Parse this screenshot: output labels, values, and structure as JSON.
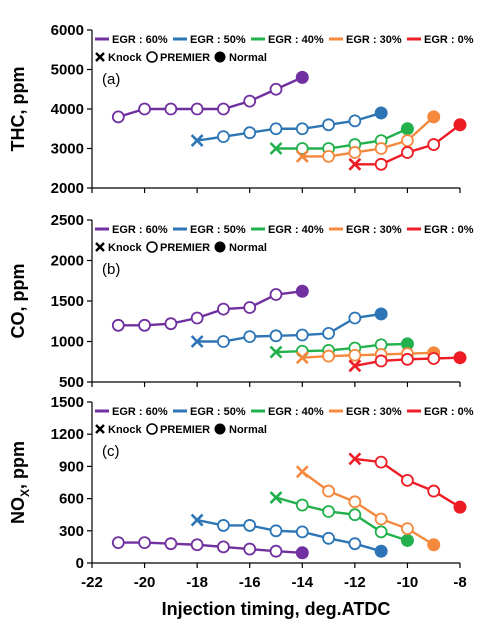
{
  "chart_data": {
    "type": "line",
    "xlabel": "Injection timing, deg.ATDC",
    "xlim": [
      -22,
      -8
    ],
    "xticks": [
      "-22",
      "-20",
      "-18",
      "-16",
      "-14",
      "-12",
      "-10",
      "-8"
    ],
    "series_names": [
      "EGR : 60%",
      "EGR : 50%",
      "EGR : 40%",
      "EGR : 30%",
      "EGR : 0%"
    ],
    "series_colors": [
      "#7030a0",
      "#2e75b6",
      "#22b14c",
      "#f4883c",
      "#ee1c25"
    ],
    "marker_legend": [
      "Knock",
      "PREMIER",
      "Normal"
    ],
    "panels": [
      {
        "tag": "(a)",
        "ylabel": "THC, ppm",
        "ylim": [
          2000,
          6000
        ],
        "yticks": [
          "2000",
          "3000",
          "4000",
          "5000",
          "6000"
        ],
        "series": [
          {
            "name": "EGR : 60%",
            "points": [
              [
                -21,
                3800,
                "premier"
              ],
              [
                -20,
                4000,
                "premier"
              ],
              [
                -19,
                4000,
                "premier"
              ],
              [
                -18,
                4000,
                "premier"
              ],
              [
                -17,
                4000,
                "premier"
              ],
              [
                -16,
                4200,
                "premier"
              ],
              [
                -15,
                4500,
                "premier"
              ],
              [
                -14,
                4800,
                "normal"
              ]
            ]
          },
          {
            "name": "EGR : 50%",
            "points": [
              [
                -18,
                3200,
                "knock"
              ],
              [
                -17,
                3300,
                "premier"
              ],
              [
                -16,
                3400,
                "premier"
              ],
              [
                -15,
                3500,
                "premier"
              ],
              [
                -14,
                3500,
                "premier"
              ],
              [
                -13,
                3600,
                "premier"
              ],
              [
                -12,
                3700,
                "premier"
              ],
              [
                -11,
                3900,
                "normal"
              ]
            ]
          },
          {
            "name": "EGR : 40%",
            "points": [
              [
                -15,
                3000,
                "knock"
              ],
              [
                -14,
                3000,
                "premier"
              ],
              [
                -13,
                3000,
                "premier"
              ],
              [
                -12,
                3100,
                "premier"
              ],
              [
                -11,
                3200,
                "premier"
              ],
              [
                -10,
                3500,
                "normal"
              ]
            ]
          },
          {
            "name": "EGR : 30%",
            "points": [
              [
                -14,
                2800,
                "knock"
              ],
              [
                -13,
                2800,
                "premier"
              ],
              [
                -12,
                2900,
                "premier"
              ],
              [
                -11,
                3000,
                "premier"
              ],
              [
                -10,
                3200,
                "premier"
              ],
              [
                -9,
                3800,
                "normal"
              ]
            ]
          },
          {
            "name": "EGR : 0%",
            "points": [
              [
                -12,
                2600,
                "knock"
              ],
              [
                -11,
                2600,
                "premier"
              ],
              [
                -10,
                2900,
                "premier"
              ],
              [
                -9,
                3100,
                "premier"
              ],
              [
                -8,
                3600,
                "normal"
              ]
            ]
          }
        ]
      },
      {
        "tag": "(b)",
        "ylabel": "CO, ppm",
        "ylim": [
          500,
          2500
        ],
        "yticks": [
          "500",
          "1000",
          "1500",
          "2000",
          "2500"
        ],
        "series": [
          {
            "name": "EGR : 60%",
            "points": [
              [
                -21,
                1200,
                "premier"
              ],
              [
                -20,
                1200,
                "premier"
              ],
              [
                -19,
                1220,
                "premier"
              ],
              [
                -18,
                1290,
                "premier"
              ],
              [
                -17,
                1400,
                "premier"
              ],
              [
                -16,
                1420,
                "premier"
              ],
              [
                -15,
                1580,
                "premier"
              ],
              [
                -14,
                1620,
                "normal"
              ]
            ]
          },
          {
            "name": "EGR : 50%",
            "points": [
              [
                -18,
                1000,
                "knock"
              ],
              [
                -17,
                1000,
                "premier"
              ],
              [
                -16,
                1060,
                "premier"
              ],
              [
                -15,
                1070,
                "premier"
              ],
              [
                -14,
                1080,
                "premier"
              ],
              [
                -13,
                1100,
                "premier"
              ],
              [
                -12,
                1290,
                "premier"
              ],
              [
                -11,
                1340,
                "normal"
              ]
            ]
          },
          {
            "name": "EGR : 40%",
            "points": [
              [
                -15,
                870,
                "knock"
              ],
              [
                -14,
                880,
                "premier"
              ],
              [
                -13,
                890,
                "premier"
              ],
              [
                -12,
                920,
                "premier"
              ],
              [
                -11,
                960,
                "premier"
              ],
              [
                -10,
                970,
                "normal"
              ]
            ]
          },
          {
            "name": "EGR : 30%",
            "points": [
              [
                -14,
                800,
                "knock"
              ],
              [
                -13,
                820,
                "premier"
              ],
              [
                -12,
                830,
                "premier"
              ],
              [
                -11,
                840,
                "premier"
              ],
              [
                -10,
                850,
                "premier"
              ],
              [
                -9,
                860,
                "normal"
              ]
            ]
          },
          {
            "name": "EGR : 0%",
            "points": [
              [
                -12,
                700,
                "knock"
              ],
              [
                -11,
                760,
                "premier"
              ],
              [
                -10,
                780,
                "premier"
              ],
              [
                -9,
                790,
                "premier"
              ],
              [
                -8,
                800,
                "normal"
              ]
            ]
          }
        ]
      },
      {
        "tag": "(c)",
        "ylabel": "NOX, ppm",
        "ylim": [
          0,
          1500
        ],
        "yticks": [
          "0",
          "300",
          "600",
          "900",
          "1200",
          "1500"
        ],
        "series": [
          {
            "name": "EGR : 60%",
            "points": [
              [
                -21,
                190,
                "premier"
              ],
              [
                -20,
                190,
                "premier"
              ],
              [
                -19,
                180,
                "premier"
              ],
              [
                -18,
                170,
                "premier"
              ],
              [
                -17,
                150,
                "premier"
              ],
              [
                -16,
                130,
                "premier"
              ],
              [
                -15,
                110,
                "premier"
              ],
              [
                -14,
                95,
                "normal"
              ]
            ]
          },
          {
            "name": "EGR : 50%",
            "points": [
              [
                -18,
                400,
                "knock"
              ],
              [
                -17,
                350,
                "premier"
              ],
              [
                -16,
                350,
                "premier"
              ],
              [
                -15,
                300,
                "premier"
              ],
              [
                -14,
                290,
                "premier"
              ],
              [
                -13,
                230,
                "premier"
              ],
              [
                -12,
                180,
                "premier"
              ],
              [
                -11,
                110,
                "normal"
              ]
            ]
          },
          {
            "name": "EGR : 40%",
            "points": [
              [
                -15,
                610,
                "knock"
              ],
              [
                -14,
                540,
                "premier"
              ],
              [
                -13,
                480,
                "premier"
              ],
              [
                -12,
                450,
                "premier"
              ],
              [
                -11,
                290,
                "premier"
              ],
              [
                -10,
                210,
                "normal"
              ]
            ]
          },
          {
            "name": "EGR : 30%",
            "points": [
              [
                -14,
                850,
                "knock"
              ],
              [
                -13,
                670,
                "premier"
              ],
              [
                -12,
                570,
                "premier"
              ],
              [
                -11,
                410,
                "premier"
              ],
              [
                -10,
                320,
                "premier"
              ],
              [
                -9,
                170,
                "normal"
              ]
            ]
          },
          {
            "name": "EGR : 0%",
            "points": [
              [
                -12,
                970,
                "knock"
              ],
              [
                -11,
                940,
                "premier"
              ],
              [
                -10,
                770,
                "premier"
              ],
              [
                -9,
                670,
                "premier"
              ],
              [
                -8,
                520,
                "normal"
              ]
            ]
          }
        ]
      }
    ]
  }
}
